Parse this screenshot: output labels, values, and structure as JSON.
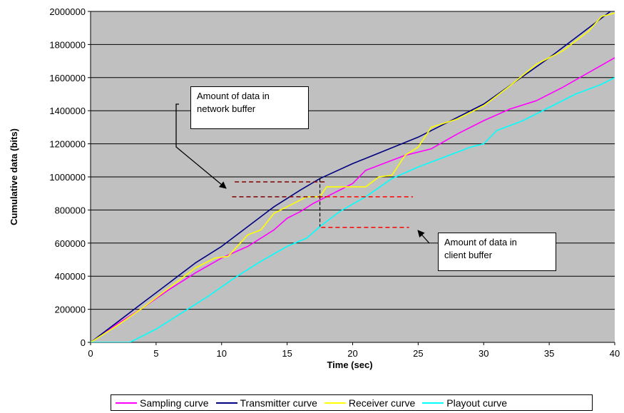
{
  "chart_data": {
    "type": "line",
    "title": "",
    "xlabel": "Time (sec)",
    "ylabel": "Cumulative data (bits)",
    "xlim": [
      0,
      40
    ],
    "ylim": [
      0,
      2000000
    ],
    "x_ticks": [
      "0",
      "5",
      "10",
      "15",
      "20",
      "25",
      "30",
      "35",
      "40"
    ],
    "y_ticks": [
      "0",
      "200000",
      "400000",
      "600000",
      "800000",
      "1000000",
      "1200000",
      "1400000",
      "1600000",
      "1800000",
      "2000000"
    ],
    "grid": true,
    "background_color": "#c0c0c0",
    "legend_position": "bottom",
    "series": [
      {
        "name": "Sampling curve",
        "color": "#ff00ff",
        "x": [
          0,
          2,
          4,
          6,
          8,
          10,
          12,
          14,
          15,
          16,
          17,
          18,
          19,
          20,
          21,
          22,
          24,
          26,
          28,
          30,
          32,
          34,
          36,
          38,
          40
        ],
        "y": [
          0,
          110000,
          210000,
          320000,
          420000,
          510000,
          580000,
          680000,
          750000,
          790000,
          840000,
          880000,
          920000,
          960000,
          1040000,
          1070000,
          1130000,
          1170000,
          1260000,
          1340000,
          1410000,
          1460000,
          1540000,
          1630000,
          1720000
        ]
      },
      {
        "name": "Transmitter curve",
        "color": "#000080",
        "x": [
          0,
          2,
          4,
          6,
          8,
          10,
          12,
          14,
          16,
          17.5,
          20,
          25,
          30,
          35,
          40
        ],
        "y": [
          0,
          120000,
          240000,
          360000,
          480000,
          580000,
          700000,
          820000,
          920000,
          990000,
          1080000,
          1240000,
          1440000,
          1720000,
          2020000
        ]
      },
      {
        "name": "Receiver curve",
        "color": "#ffff00",
        "x": [
          0,
          2,
          4,
          6,
          8,
          9.5,
          10.5,
          12,
          13,
          14,
          15,
          16.5,
          17.5,
          18,
          19,
          21,
          22,
          23,
          24,
          25,
          26,
          28,
          30,
          32,
          34,
          36,
          38,
          39,
          40
        ],
        "y": [
          0,
          100000,
          210000,
          330000,
          450000,
          510000,
          520000,
          650000,
          680000,
          780000,
          820000,
          880000,
          880000,
          940000,
          940000,
          940000,
          1000000,
          1010000,
          1130000,
          1180000,
          1300000,
          1350000,
          1430000,
          1550000,
          1680000,
          1760000,
          1880000,
          1970000,
          1990000
        ]
      },
      {
        "name": "Playout curve",
        "color": "#00ffff",
        "x": [
          0,
          3,
          5,
          7,
          9,
          11,
          13,
          15,
          16.5,
          17.5,
          19,
          21,
          23,
          25,
          27,
          29,
          30,
          31,
          33,
          35,
          37,
          39,
          40
        ],
        "y": [
          0,
          0,
          80000,
          180000,
          280000,
          390000,
          490000,
          580000,
          630000,
          700000,
          790000,
          880000,
          990000,
          1060000,
          1120000,
          1180000,
          1200000,
          1280000,
          1340000,
          1420000,
          1500000,
          1560000,
          1600000
        ]
      }
    ],
    "annotations": {
      "network_buffer": "Amount of data in network buffer",
      "client_buffer": "Amount of data in client buffer"
    }
  },
  "callouts": {
    "network": [
      "Amount of data in",
      "network  buffer"
    ],
    "client": [
      "Amount of data in",
      "client buffer"
    ]
  }
}
